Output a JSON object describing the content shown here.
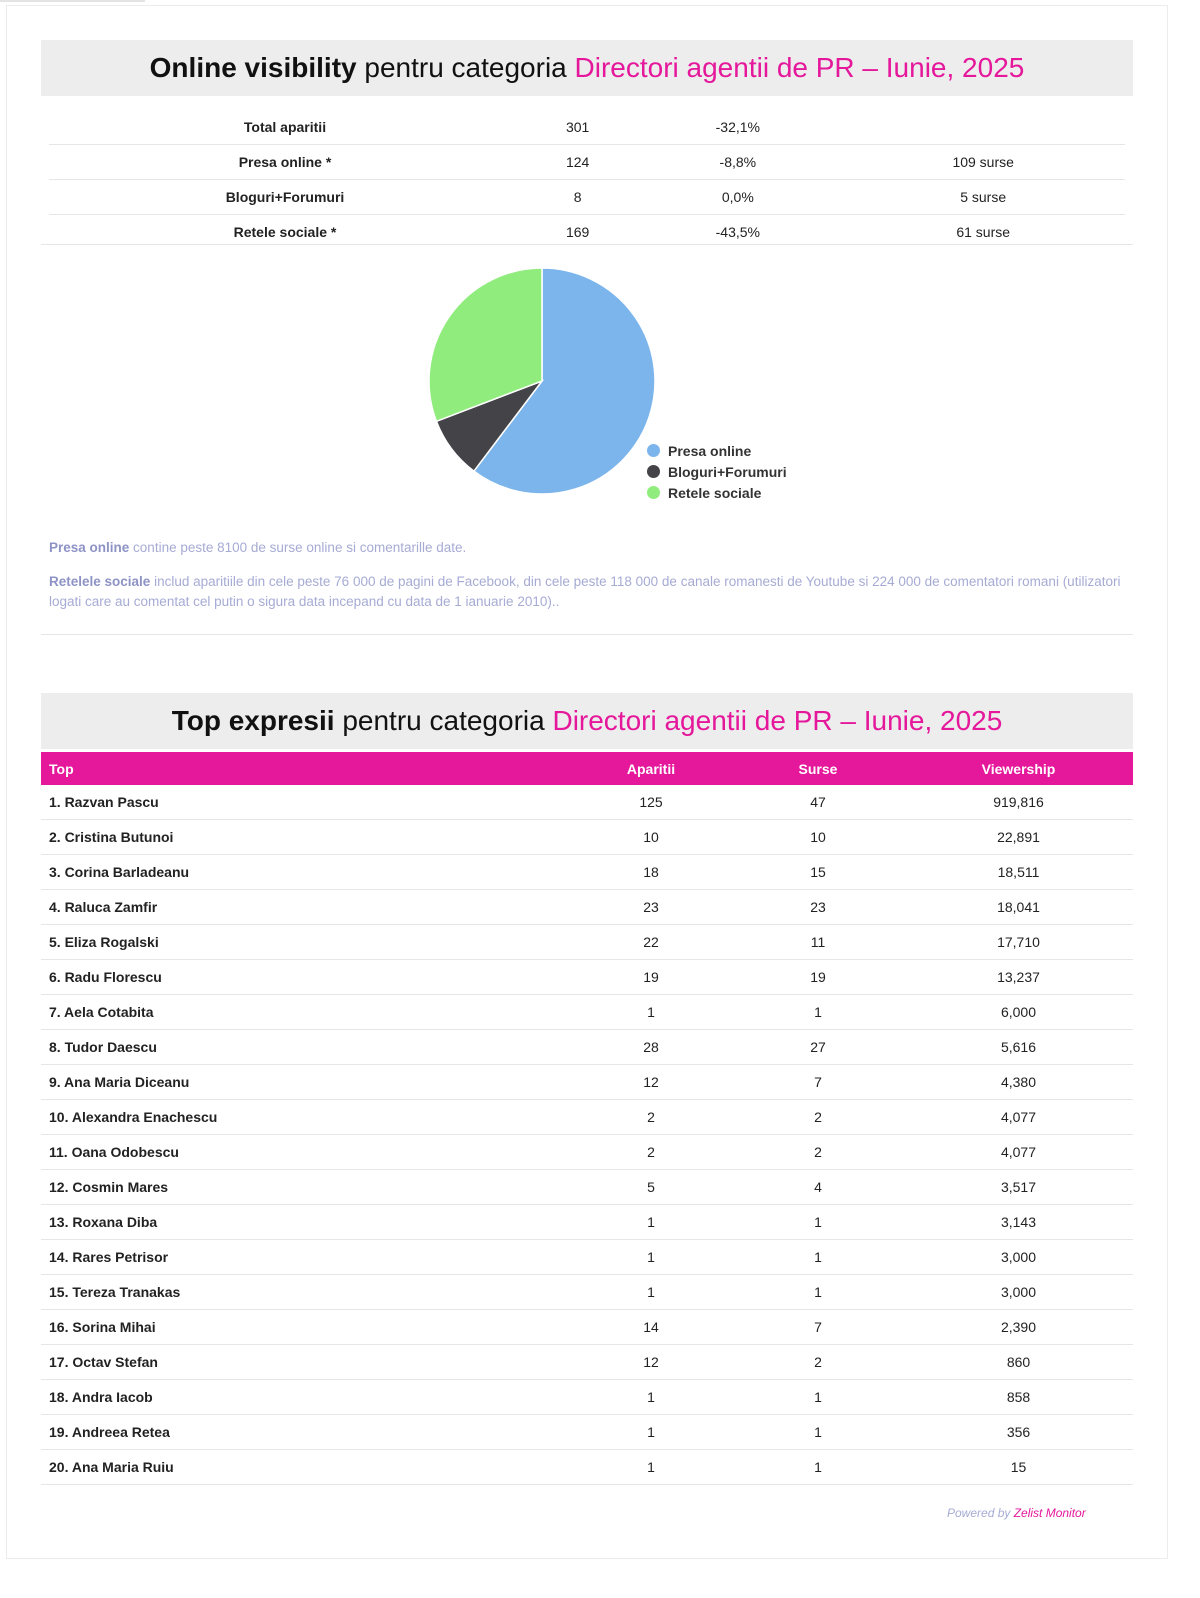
{
  "visibility": {
    "title_bold": "Online visibility",
    "title_mid": " pentru categoria ",
    "title_pink": "Directori agentii de PR – Iunie, 2025",
    "rows": [
      {
        "label": "Total aparitii",
        "count": "301",
        "change": "-32,1%",
        "sources": ""
      },
      {
        "label": "Presa online *",
        "count": "124",
        "change": "-8,8%",
        "sources": "109 surse"
      },
      {
        "label": "Bloguri+Forumuri",
        "count": "8",
        "change": "0,0%",
        "sources": "5 surse"
      },
      {
        "label": "Retele sociale *",
        "count": "169",
        "change": "-43,5%",
        "sources": "61 surse"
      }
    ]
  },
  "chart_data": {
    "type": "pie",
    "title": "",
    "categories": [
      "Presa online",
      "Bloguri+Forumuri",
      "Retele sociale"
    ],
    "values": [
      60.3,
      8.9,
      30.8
    ],
    "unit": "percent (estimated from slice angles)",
    "colors": [
      "#7cb5ec",
      "#434348",
      "#90ed7d"
    ],
    "legend": "bottom-right"
  },
  "notes": {
    "n1_bold": "Presa online",
    "n1_text": " contine peste 8100 de surse online si comentarille date.",
    "n2_bold": "Retelele sociale",
    "n2_text": " includ aparitiile din cele peste 76 000 de pagini de Facebook, din cele peste 118 000 de canale romanesti de Youtube si 224 000 de comentatori romani (utilizatori logati care au comentat cel putin o sigura data incepand cu data de 1 ianuarie 2010).."
  },
  "top": {
    "title_bold": "Top expresii",
    "title_mid": " pentru categoria ",
    "title_pink": "Directori agentii de PR – Iunie, 2025",
    "headers": [
      "Top",
      "Aparitii",
      "Surse",
      "Viewership"
    ],
    "rows": [
      [
        "1. Razvan Pascu",
        "125",
        "47",
        "919,816"
      ],
      [
        "2. Cristina Butunoi",
        "10",
        "10",
        "22,891"
      ],
      [
        "3. Corina Barladeanu",
        "18",
        "15",
        "18,511"
      ],
      [
        "4. Raluca Zamfir",
        "23",
        "23",
        "18,041"
      ],
      [
        "5. Eliza Rogalski",
        "22",
        "11",
        "17,710"
      ],
      [
        "6. Radu Florescu",
        "19",
        "19",
        "13,237"
      ],
      [
        "7. Aela Cotabita",
        "1",
        "1",
        "6,000"
      ],
      [
        "8. Tudor Daescu",
        "28",
        "27",
        "5,616"
      ],
      [
        "9. Ana Maria Diceanu",
        "12",
        "7",
        "4,380"
      ],
      [
        "10. Alexandra Enachescu",
        "2",
        "2",
        "4,077"
      ],
      [
        "11. Oana Odobescu",
        "2",
        "2",
        "4,077"
      ],
      [
        "12. Cosmin Mares",
        "5",
        "4",
        "3,517"
      ],
      [
        "13. Roxana Diba",
        "1",
        "1",
        "3,143"
      ],
      [
        "14. Rares Petrisor",
        "1",
        "1",
        "3,000"
      ],
      [
        "15. Tereza Tranakas",
        "1",
        "1",
        "3,000"
      ],
      [
        "16. Sorina Mihai",
        "14",
        "7",
        "2,390"
      ],
      [
        "17. Octav Stefan",
        "12",
        "2",
        "860"
      ],
      [
        "18. Andra Iacob",
        "1",
        "1",
        "858"
      ],
      [
        "19. Andreea Retea",
        "1",
        "1",
        "356"
      ],
      [
        "20. Ana Maria Ruiu",
        "1",
        "1",
        "15"
      ]
    ]
  },
  "footer": {
    "powered": "Powered by ",
    "brand": "Zelist Monitor"
  }
}
